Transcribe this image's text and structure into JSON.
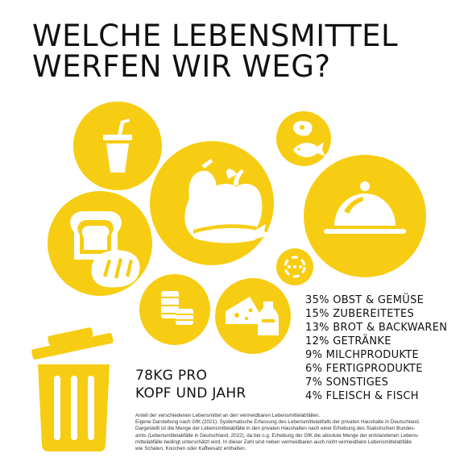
{
  "title": {
    "line1": "WELCHE LEBENSMITTEL",
    "line2": "WERFEN WIR WEG?"
  },
  "chart_data": {
    "type": "bubble",
    "categories": [
      "OBST & GEMÜSE",
      "ZUBEREITETES",
      "BROT & BACKWAREN",
      "GETRÄNKE",
      "MILCHPRODUKTE",
      "FERTIGPRODUKTE",
      "SONSTIGES",
      "FLEISCH & FISCH"
    ],
    "values": [
      35,
      15,
      13,
      12,
      9,
      6,
      7,
      4
    ],
    "unit": "%",
    "color": "#F7CD13",
    "labels": [
      "35% OBST & GEMÜSE",
      "15% ZUBEREITETES",
      "13% BROT & BACKWAREN",
      "12% GETRÄNKE",
      "9% MILCHPRODUKTE",
      "6% FERTIGPRODUKTE",
      "7% SONSTIGES",
      "4% FLEISCH & FISCH"
    ],
    "icons": [
      "fruit-vegetable-icon",
      "dish-cloche-icon",
      "bread-icon",
      "drink-cup-icon",
      "cheese-milk-icon",
      "canned-food-icon",
      "other-icon",
      "meat-fish-icon"
    ]
  },
  "total": {
    "line1": "78KG PRO",
    "line2": "KOPF UND JAHR"
  },
  "trash_icon": "trash-can-icon",
  "source": {
    "line1": "Anteil der verschiedenen Lebensmittel an den vermeidbaren Lebensmittelabfällen.",
    "line2": "Eigene Darstellung nach GfK (2021): Systematische Erfassung des Lebensmittelabfalls der privaten Haushalte in Deutschland.",
    "line3": "Dargestellt ist die Menge der Lebensmittelabfälle in den privaten Haushalten nach einer Erhebung des Statistischen Bundes-",
    "line4": "amts (Lebensmittelabfälle in Deutschland, 2022), da bei o.g. Erhebung der GfK die absolute Menge der entstandenen Lebens-",
    "line5": "mittelabfälle bedingt unterschätzt wird. In dieser Zahl sind neben vermeidbaren auch nicht vermeidbare Lebensmittelabfälle",
    "line6": "wie Schalen, Knochen oder Kaffeesatz enthalten."
  }
}
